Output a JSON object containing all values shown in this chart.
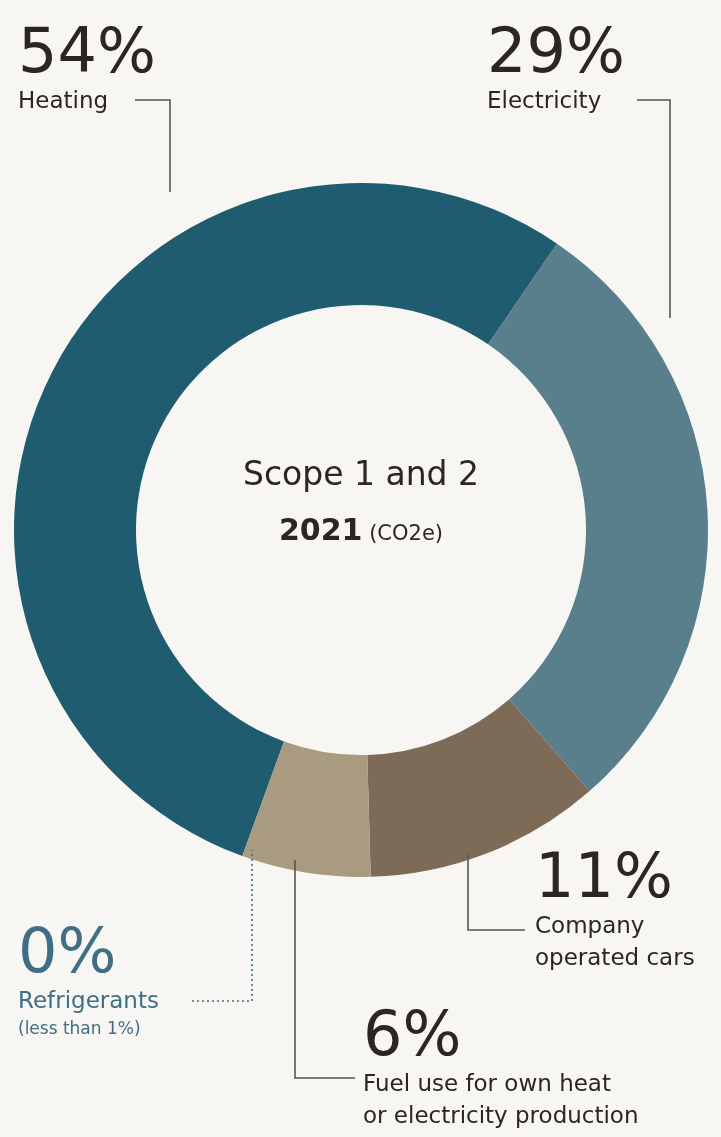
{
  "chart_data": {
    "type": "donut",
    "title": "Scope 1 and 2",
    "subtitle": "2021 (CO2e)",
    "categories": [
      "Heating",
      "Electricity",
      "Company operated cars",
      "Fuel use for own heat or electricity production",
      "Refrigerants"
    ],
    "values": [
      54,
      29,
      11,
      6,
      0
    ],
    "value_labels": [
      "54%",
      "29%",
      "11%",
      "6%",
      "0%"
    ],
    "colors": [
      "#1f5c70",
      "#5a7f8c",
      "#7d6b58",
      "#a89b80",
      "#3f6e85"
    ],
    "annotations": [
      "(less than 1%)"
    ]
  }
}
